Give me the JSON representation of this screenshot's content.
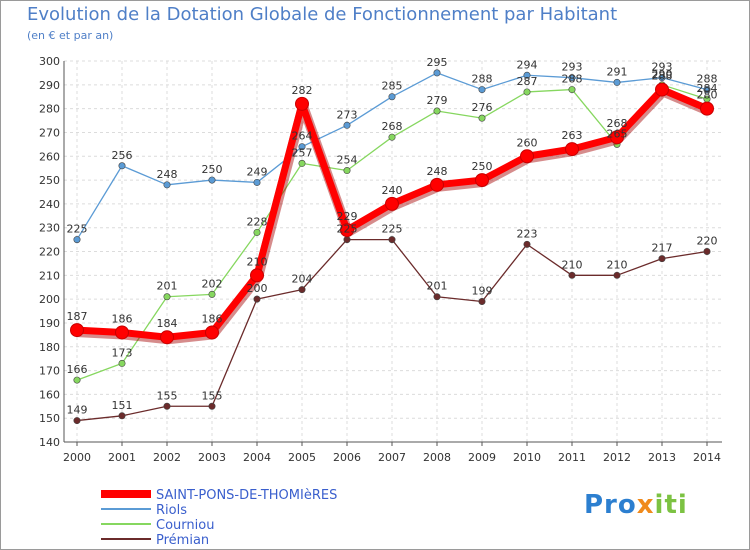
{
  "chart_data": {
    "type": "line",
    "title": "Evolution de la Dotation Globale de Fonctionnement par Habitant",
    "subtitle": "(en € et par an)",
    "xlabel": "",
    "ylabel": "",
    "ylim": [
      140,
      300
    ],
    "yticks": [
      140,
      150,
      160,
      170,
      180,
      190,
      200,
      210,
      220,
      230,
      240,
      250,
      260,
      270,
      280,
      290,
      300
    ],
    "grid": true,
    "legend_position": "bottom-left",
    "categories": [
      "2000",
      "2001",
      "2002",
      "2003",
      "2004",
      "2005",
      "2006",
      "2007",
      "2008",
      "2009",
      "2010",
      "2011",
      "2012",
      "2013",
      "2014"
    ],
    "series": [
      {
        "name": "SAINT-PONS-DE-THOMIèRES",
        "color": "#ff0000",
        "values": [
          187,
          186,
          184,
          186,
          210,
          282,
          229,
          240,
          248,
          250,
          260,
          263,
          268,
          288,
          280
        ]
      },
      {
        "name": "Riols",
        "color": "#5b9bd5",
        "values": [
          225,
          256,
          248,
          250,
          249,
          264,
          273,
          285,
          295,
          288,
          294,
          293,
          291,
          293,
          288
        ]
      },
      {
        "name": "Courniou",
        "color": "#86d75f",
        "values": [
          166,
          173,
          201,
          202,
          228,
          257,
          254,
          268,
          279,
          276,
          287,
          288,
          265,
          290,
          284
        ]
      },
      {
        "name": "Prémian",
        "color": "#6b2b2b",
        "values": [
          149,
          151,
          155,
          155,
          200,
          204,
          225,
          225,
          201,
          199,
          223,
          210,
          210,
          217,
          220
        ]
      }
    ]
  },
  "logo": {
    "part1": "Pro",
    "part2": "x",
    "part3": "iti"
  }
}
